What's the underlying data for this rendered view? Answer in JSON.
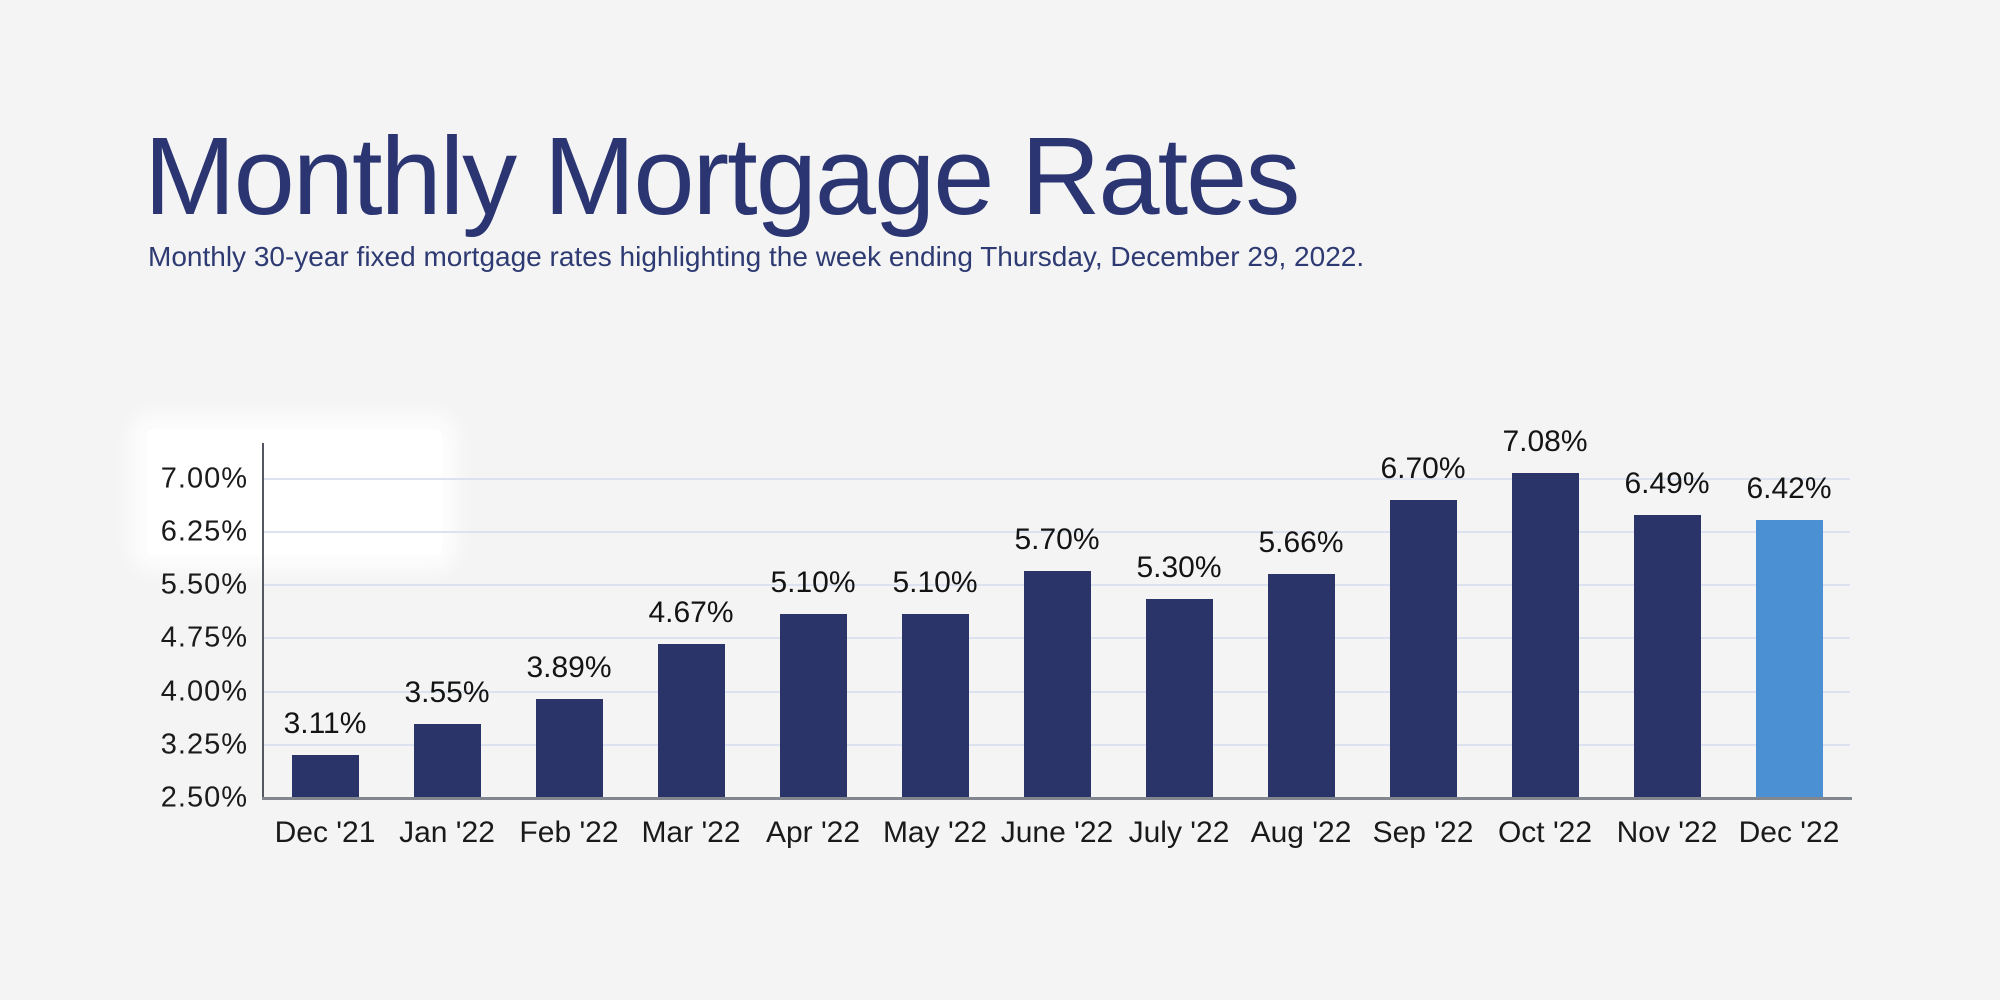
{
  "page": {
    "background_color": "#f4f4f5"
  },
  "header": {
    "title": "Monthly Mortgage Rates",
    "subtitle": "Monthly 30-year fixed mortgage rates highlighting the week ending Thursday, December 29, 2022."
  },
  "colors": {
    "title_text": "#2b3572",
    "subtitle_text": "#2e3a72",
    "bar": "#2a3468",
    "bar_highlight": "#4a90d2",
    "gridline": "#dce2ef",
    "axis_line": "#54575f",
    "baseline": "#82868f",
    "tick_label_text": "#1b1b1b",
    "value_label_text": "#141414",
    "category_label_text": "#1a1a1a"
  },
  "chart_data": {
    "type": "bar",
    "title": "Monthly Mortgage Rates",
    "subtitle": "Monthly 30-year fixed mortgage rates highlighting the week ending Thursday, December 29, 2022.",
    "categories": [
      "Dec '21",
      "Jan '22",
      "Feb '22",
      "Mar '22",
      "Apr '22",
      "May '22",
      "June '22",
      "July '22",
      "Aug '22",
      "Sep '22",
      "Oct '22",
      "Nov '22",
      "Dec '22"
    ],
    "values": [
      3.11,
      3.55,
      3.89,
      4.67,
      5.1,
      5.1,
      5.7,
      5.3,
      5.66,
      6.7,
      7.08,
      6.49,
      6.42
    ],
    "value_labels": [
      "3.11%",
      "3.55%",
      "3.89%",
      "4.67%",
      "5.10%",
      "5.10%",
      "5.70%",
      "5.30%",
      "5.66%",
      "6.70%",
      "7.08%",
      "6.49%",
      "6.42%"
    ],
    "highlight_index": 12,
    "highlight_meaning": "week ending Thursday, December 29, 2022",
    "xlabel": "",
    "ylabel": "",
    "y_ticks": [
      "7.00%",
      "6.25%",
      "5.50%",
      "4.75%",
      "4.00%",
      "3.25%",
      "2.50%"
    ],
    "y_tick_values": [
      7.0,
      6.25,
      5.5,
      4.75,
      4.0,
      3.25,
      2.5
    ],
    "ylim": [
      2.5,
      7.5
    ],
    "grid": true,
    "legend_position": "none"
  }
}
